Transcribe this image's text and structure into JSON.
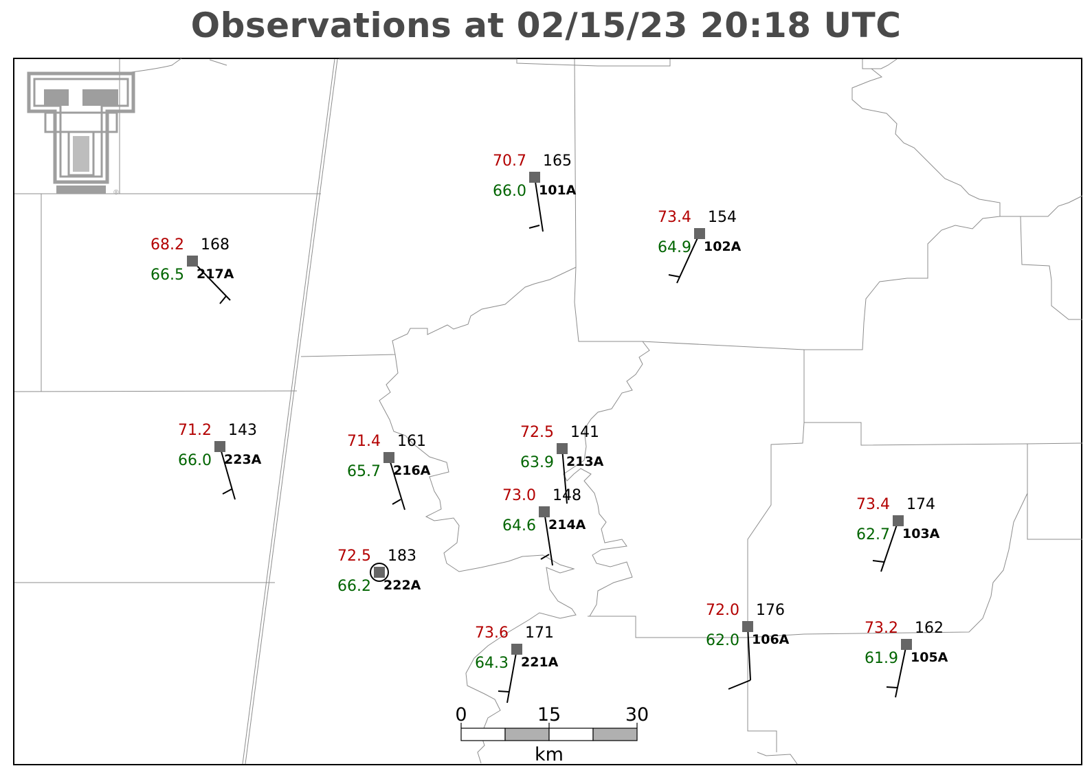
{
  "title": "Observations at 02/15/23 20:18 UTC",
  "logo": {
    "mark": "®"
  },
  "colors": {
    "temperature": "#b30000",
    "dewpoint": "#006400",
    "station_marker": "#666666",
    "logo": "#9e9e9e"
  },
  "stations": [
    {
      "id": "101A",
      "temperature": "70.7",
      "dewpoint": "66.0",
      "pressure": "165"
    },
    {
      "id": "102A",
      "temperature": "73.4",
      "dewpoint": "64.9",
      "pressure": "154"
    },
    {
      "id": "217A",
      "temperature": "68.2",
      "dewpoint": "66.5",
      "pressure": "168"
    },
    {
      "id": "223A",
      "temperature": "71.2",
      "dewpoint": "66.0",
      "pressure": "143"
    },
    {
      "id": "216A",
      "temperature": "71.4",
      "dewpoint": "65.7",
      "pressure": "161"
    },
    {
      "id": "213A",
      "temperature": "72.5",
      "dewpoint": "63.9",
      "pressure": "141"
    },
    {
      "id": "214A",
      "temperature": "73.0",
      "dewpoint": "64.6",
      "pressure": "148"
    },
    {
      "id": "222A",
      "temperature": "72.5",
      "dewpoint": "66.2",
      "pressure": "183",
      "calm": true
    },
    {
      "id": "221A",
      "temperature": "73.6",
      "dewpoint": "64.3",
      "pressure": "171"
    },
    {
      "id": "106A",
      "temperature": "72.0",
      "dewpoint": "62.0",
      "pressure": "176"
    },
    {
      "id": "103A",
      "temperature": "73.4",
      "dewpoint": "62.7",
      "pressure": "174"
    },
    {
      "id": "105A",
      "temperature": "73.2",
      "dewpoint": "61.9",
      "pressure": "162"
    }
  ],
  "scale_bar": {
    "labels": [
      "0",
      "15",
      "30"
    ],
    "unit": "km"
  }
}
